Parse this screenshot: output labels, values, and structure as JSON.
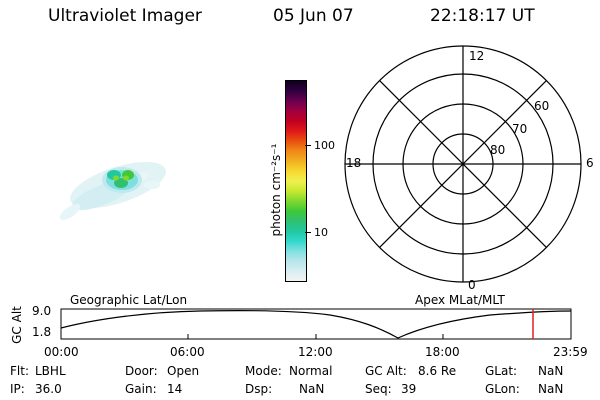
{
  "header": {
    "instrument": "Ultraviolet Imager",
    "date": "05 Jun 07",
    "time": "22:18:17 UT"
  },
  "colorbar": {
    "label": "photon cm⁻²s⁻¹",
    "ticks": [
      {
        "label": "100",
        "value": 100
      },
      {
        "label": "10",
        "value": 10
      }
    ],
    "colors": [
      "#f2f2f2",
      "#d8eef2",
      "#b8e6ea",
      "#7fe0e0",
      "#30d8cc",
      "#20c8a0",
      "#30c070",
      "#40c838",
      "#80d830",
      "#c8e830",
      "#f0f050",
      "#f8d830",
      "#f0b020",
      "#f08818",
      "#e85010",
      "#e01818",
      "#c00020",
      "#a00040",
      "#6a0050",
      "#300040",
      "#100020"
    ]
  },
  "polar": {
    "mlt_labels": {
      "top": "12",
      "left": "18",
      "right": "6",
      "bottom": "0"
    },
    "lat_labels": [
      "60",
      "70",
      "80"
    ]
  },
  "timeline": {
    "left_label": "Geographic Lat/Lon",
    "right_label": "Apex MLat/MLT",
    "ylabel": "GC Alt",
    "ymax": "9.0",
    "ymin": "1.8",
    "x_ticks": [
      "00:00",
      "06:00",
      "12:00",
      "18:00",
      "23:59"
    ]
  },
  "status": {
    "flt": {
      "key": "Flt:",
      "value": "LBHL"
    },
    "ip": {
      "key": "IP:",
      "value": "36.0"
    },
    "door": {
      "key": "Door:",
      "value": "Open"
    },
    "gain": {
      "key": "Gain:",
      "value": "14"
    },
    "mode": {
      "key": "Mode:",
      "value": "Normal"
    },
    "dsp": {
      "key": "Dsp:",
      "value": "NaN"
    },
    "gcalt": {
      "key": "GC Alt:",
      "value": "8.6 Re"
    },
    "seq": {
      "key": "Seq:",
      "value": "39"
    },
    "glat": {
      "key": "GLat:",
      "value": "NaN"
    },
    "glon": {
      "key": "GLon:",
      "value": "NaN"
    }
  }
}
